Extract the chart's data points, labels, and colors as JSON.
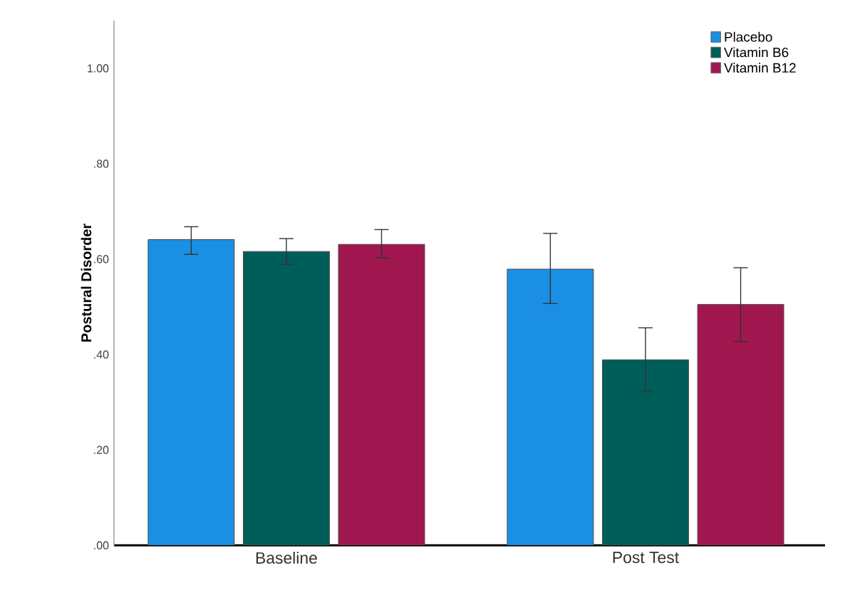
{
  "chart_data": {
    "type": "bar",
    "ylabel": "Postural Disorder",
    "categories": [
      "Baseline",
      "Post Test"
    ],
    "series": [
      {
        "name": "Placebo",
        "color": "#1a8fe3",
        "values": [
          0.641,
          0.579
        ],
        "errors": [
          [
            0.61,
            0.668
          ],
          [
            0.507,
            0.654
          ]
        ]
      },
      {
        "name": "Vitamin B6",
        "color": "#005e5a",
        "values": [
          0.616,
          0.389
        ],
        "errors": [
          [
            0.589,
            0.643
          ],
          [
            0.324,
            0.456
          ]
        ]
      },
      {
        "name": "Vitamin B12",
        "color": "#a0174f",
        "values": [
          0.631,
          0.505
        ],
        "errors": [
          [
            0.603,
            0.662
          ],
          [
            0.427,
            0.582
          ]
        ]
      }
    ],
    "ylim": [
      0,
      1.1
    ],
    "yticks": [
      {
        "value": 0,
        "label": ".00"
      },
      {
        "value": 0.2,
        "label": ".20"
      },
      {
        "value": 0.4,
        "label": ".40"
      },
      {
        "value": 0.6,
        "label": ".60"
      },
      {
        "value": 0.8,
        "label": ".80"
      },
      {
        "value": 1.0,
        "label": "1.00"
      }
    ],
    "grid": false,
    "legend": "top right"
  }
}
